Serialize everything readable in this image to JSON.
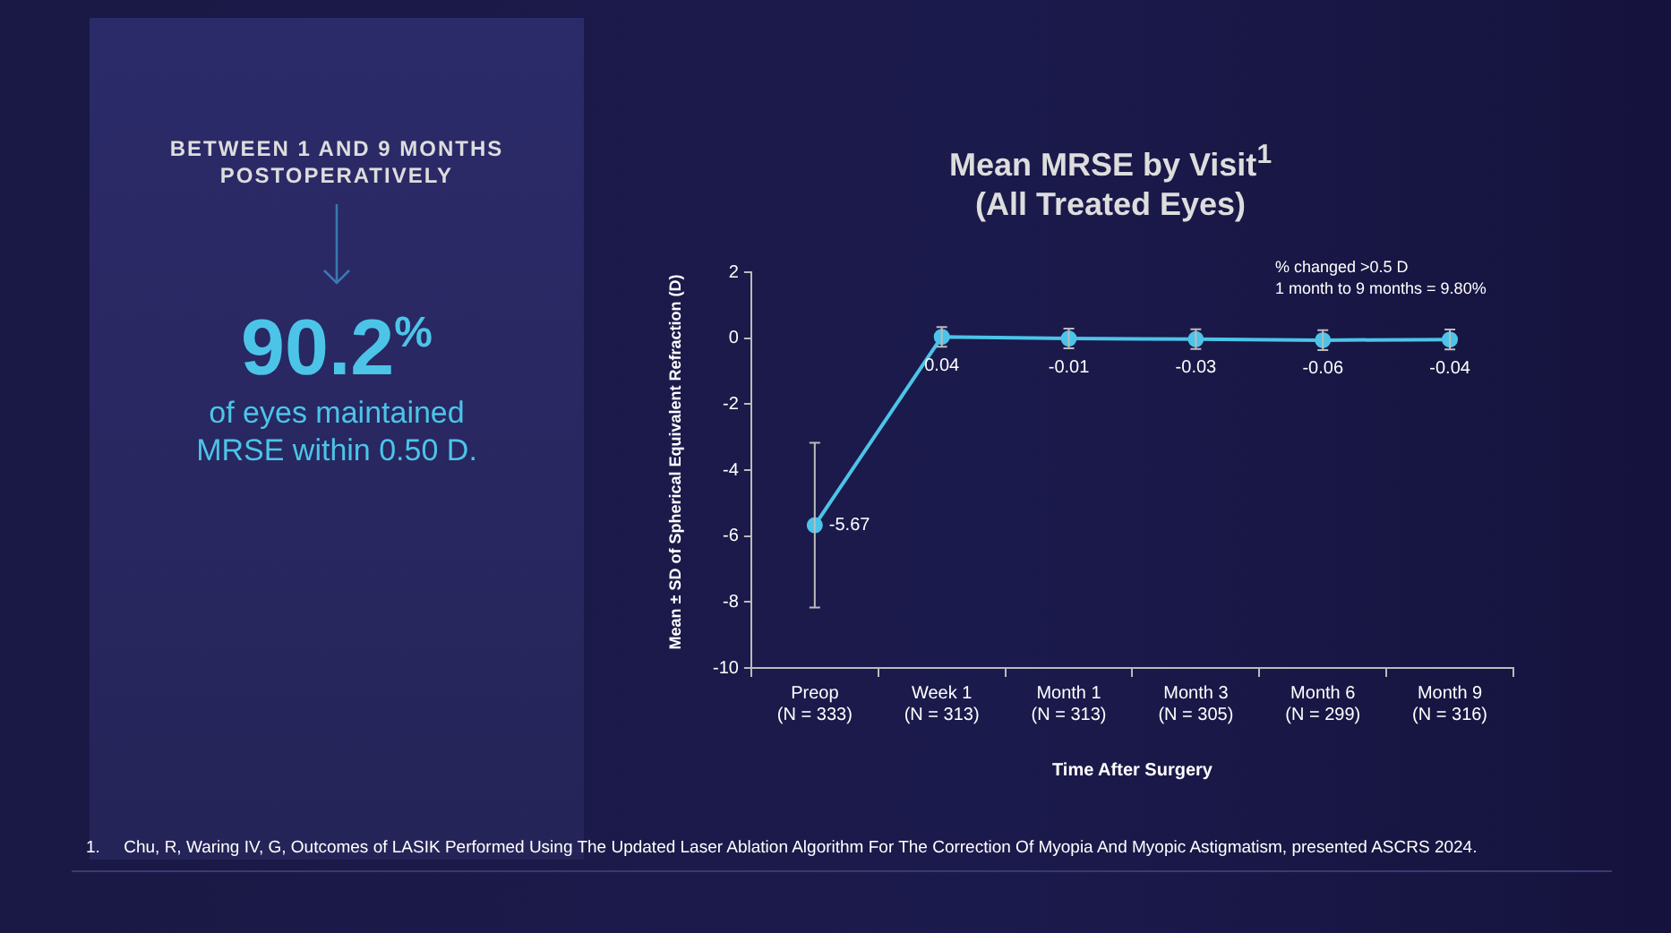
{
  "chart_data": [
    {
      "type": "other",
      "title": "BETWEEN 1 AND 9 MONTHS POSTOPERATIVELY",
      "annotations": [
        "90.2$^{%}$",
        "of eyes maintained MRSE within 0.50 D."
      ]
    },
    {
      "type": "line",
      "title": "Mean MRSE by Visit$^{1}$",
      "subtitle": "(All Treated Eyes)",
      "xlabel": "Time After Surgery",
      "ylabel": "Mean ± SD of Spherical Equivalent Refraction (D)",
      "categories": [
        "Preop\n(N = 333)",
        "Week 1\n(N = 313)",
        "Month 1\n(N = 313)",
        "Month 3\n(N = 305)",
        "Month 6\n(N = 299)",
        "Month 9\n(N = 316)"
      ],
      "values": [
        -5.67,
        0.04,
        -0.01,
        -0.03,
        -0.06,
        -0.04
      ],
      "errors": [
        2.5,
        0.3,
        0.3,
        0.3,
        0.3,
        0.3
      ],
      "color": "#4cc4e8",
      "marker": "circle",
      "data_labels": true,
      "grid": false,
      "legend": false,
      "ylim": [
        -10,
        2
      ],
      "yticks": [
        -10,
        -8,
        -6,
        -4,
        -2,
        0,
        2
      ],
      "annotations": [
        "% changed >0.5 D",
        "1 month to 9 months = 9.80%",
        "1.     Chu, R, Waring IV, G, Outcomes of LASIK Performed Using The Updated Laser Ablation Algorithm For The Correction Of Myopia And Myopic Astigmatism, presented ASCRS 2024."
      ]
    }
  ]
}
